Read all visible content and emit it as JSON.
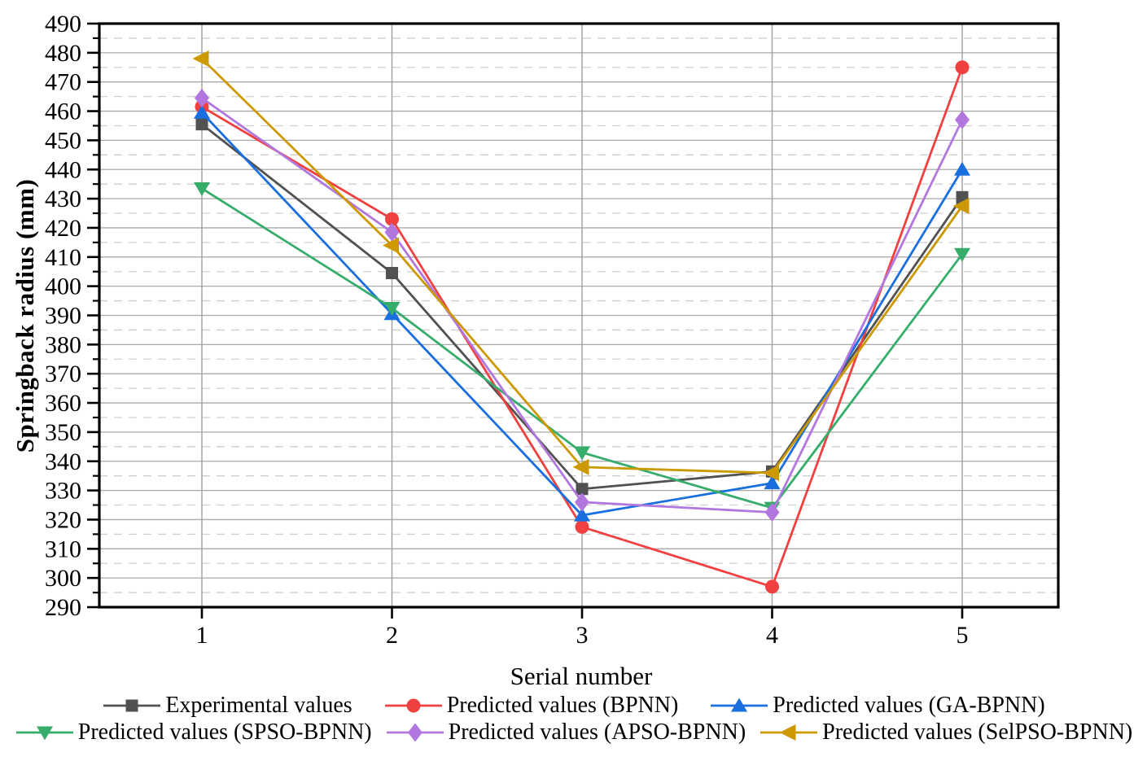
{
  "figure": {
    "background": "#ffffff",
    "plot_border_color": "#000000",
    "major_grid_color": "#a9a9a9",
    "minor_grid_color": "#cfcfcf"
  },
  "chart_data": {
    "type": "line",
    "title": "",
    "xlabel": "Serial number",
    "ylabel": "Springback radius (mm)",
    "categories": [
      1,
      2,
      3,
      4,
      5
    ],
    "ylim": [
      290,
      490
    ],
    "ytick_step": 10,
    "ytick_minor_step": 5,
    "grid": {
      "horizontal_major": "solid",
      "horizontal_minor": "dashed",
      "vertical_major": "solid"
    },
    "legend_position": "bottom",
    "series": [
      {
        "name": "Experimental values",
        "color": "#515151",
        "marker": "square",
        "values": [
          455.5,
          404.5,
          330.5,
          336.5,
          430.5
        ]
      },
      {
        "name": "Predicted values (BPNN)",
        "color": "#F14040",
        "marker": "circle",
        "values": [
          461.5,
          423.0,
          317.5,
          297.0,
          475.0
        ]
      },
      {
        "name": "Predicted values (GA-BPNN)",
        "color": "#1A6FDF",
        "marker": "triangle-up",
        "values": [
          459.5,
          390.5,
          321.5,
          332.5,
          440.0
        ]
      },
      {
        "name": "Predicted values (SPSO-BPNN)",
        "color": "#37AD6B",
        "marker": "triangle-down",
        "values": [
          433.5,
          392.5,
          343.0,
          324.0,
          411.0
        ]
      },
      {
        "name": "Predicted values (APSO-BPNN)",
        "color": "#B177DE",
        "marker": "diamond",
        "values": [
          464.5,
          418.5,
          326.0,
          322.5,
          457.0
        ]
      },
      {
        "name": "Predicted values (SelPSO-BPNN)",
        "color": "#CC9900",
        "marker": "triangle-left",
        "values": [
          478.0,
          414.0,
          338.0,
          336.0,
          427.5
        ]
      }
    ]
  }
}
